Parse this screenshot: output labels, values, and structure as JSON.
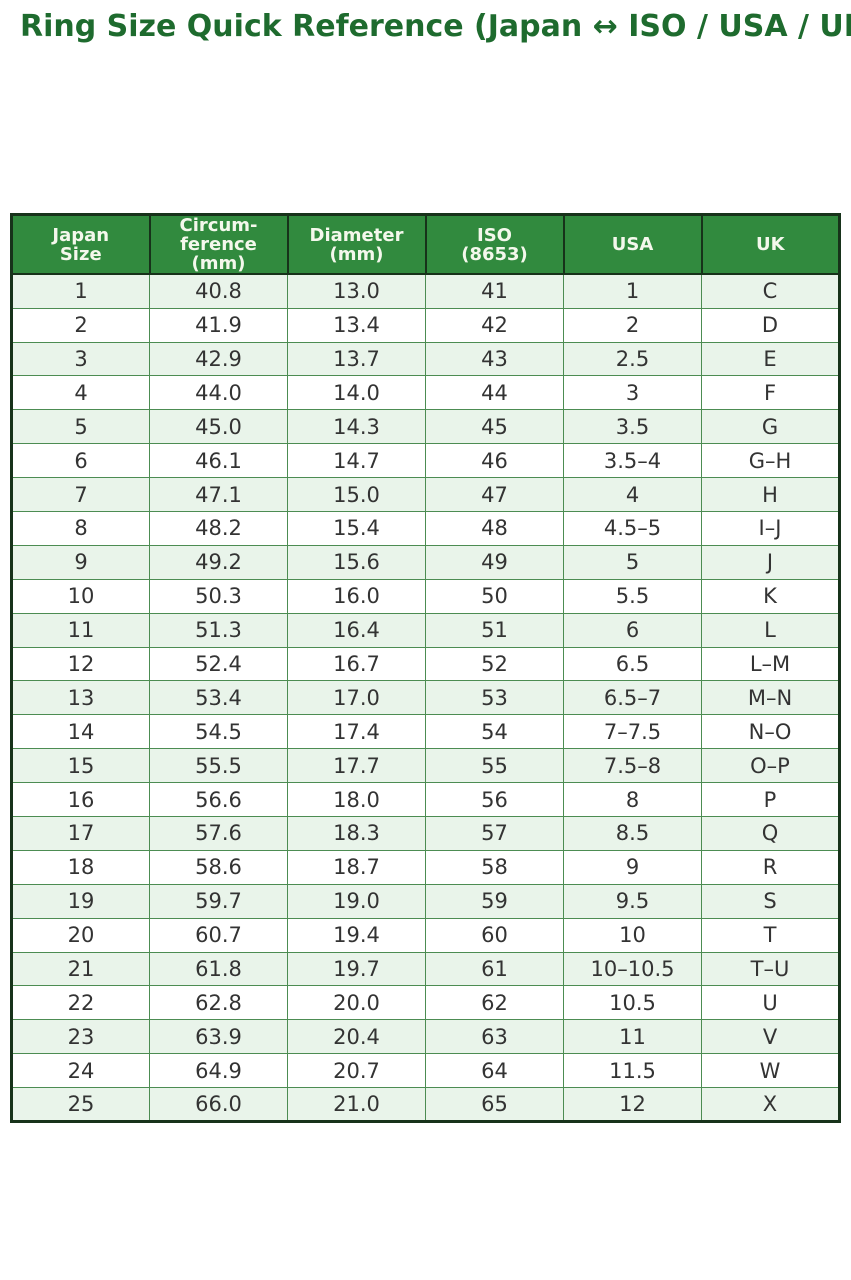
{
  "header": {
    "title": "Ring Size Quick Reference (Japan ↔ ISO / USA / UK)"
  },
  "theme": {
    "title_color": "#1e6b2e",
    "table_header_bg": "#318a3e",
    "table_header_text": "#f4f8ec",
    "row_alt_bg": "#e9f4ea",
    "row_bg": "#ffffff",
    "grid_color": "#4c8c52",
    "frame_color": "#17321a"
  },
  "table": {
    "header_keys": [
      "japan-size",
      "circumference-mm",
      "diameter-mm",
      "iso-8653",
      "usa",
      "uk"
    ],
    "header_labels": [
      "Japan\nSize",
      "Circum-\nference\n(mm)",
      "Diameter\n(mm)",
      "ISO\n(8653)",
      "USA",
      "UK"
    ]
  },
  "chart_data": {
    "type": "table",
    "title": "Ring Size Quick Reference (Japan ↔ ISO / USA / UK)",
    "columns": [
      "Japan Size",
      "Circumference (mm)",
      "Diameter (mm)",
      "ISO (8653)",
      "USA",
      "UK"
    ],
    "rows": [
      [
        "1",
        "40.8",
        "13.0",
        "41",
        "1",
        "C"
      ],
      [
        "2",
        "41.9",
        "13.4",
        "42",
        "2",
        "D"
      ],
      [
        "3",
        "42.9",
        "13.7",
        "43",
        "2.5",
        "E"
      ],
      [
        "4",
        "44.0",
        "14.0",
        "44",
        "3",
        "F"
      ],
      [
        "5",
        "45.0",
        "14.3",
        "45",
        "3.5",
        "G"
      ],
      [
        "6",
        "46.1",
        "14.7",
        "46",
        "3.5–4",
        "G–H"
      ],
      [
        "7",
        "47.1",
        "15.0",
        "47",
        "4",
        "H"
      ],
      [
        "8",
        "48.2",
        "15.4",
        "48",
        "4.5–5",
        "I–J"
      ],
      [
        "9",
        "49.2",
        "15.6",
        "49",
        "5",
        "J"
      ],
      [
        "10",
        "50.3",
        "16.0",
        "50",
        "5.5",
        "K"
      ],
      [
        "11",
        "51.3",
        "16.4",
        "51",
        "6",
        "L"
      ],
      [
        "12",
        "52.4",
        "16.7",
        "52",
        "6.5",
        "L–M"
      ],
      [
        "13",
        "53.4",
        "17.0",
        "53",
        "6.5–7",
        "M–N"
      ],
      [
        "14",
        "54.5",
        "17.4",
        "54",
        "7–7.5",
        "N–O"
      ],
      [
        "15",
        "55.5",
        "17.7",
        "55",
        "7.5–8",
        "O–P"
      ],
      [
        "16",
        "56.6",
        "18.0",
        "56",
        "8",
        "P"
      ],
      [
        "17",
        "57.6",
        "18.3",
        "57",
        "8.5",
        "Q"
      ],
      [
        "18",
        "58.6",
        "18.7",
        "58",
        "9",
        "R"
      ],
      [
        "19",
        "59.7",
        "19.0",
        "59",
        "9.5",
        "S"
      ],
      [
        "20",
        "60.7",
        "19.4",
        "60",
        "10",
        "T"
      ],
      [
        "21",
        "61.8",
        "19.7",
        "61",
        "10–10.5",
        "T–U"
      ],
      [
        "22",
        "62.8",
        "20.0",
        "62",
        "10.5",
        "U"
      ],
      [
        "23",
        "63.9",
        "20.4",
        "63",
        "11",
        "V"
      ],
      [
        "24",
        "64.9",
        "20.7",
        "64",
        "11.5",
        "W"
      ],
      [
        "25",
        "66.0",
        "21.0",
        "65",
        "12",
        "X"
      ]
    ]
  }
}
